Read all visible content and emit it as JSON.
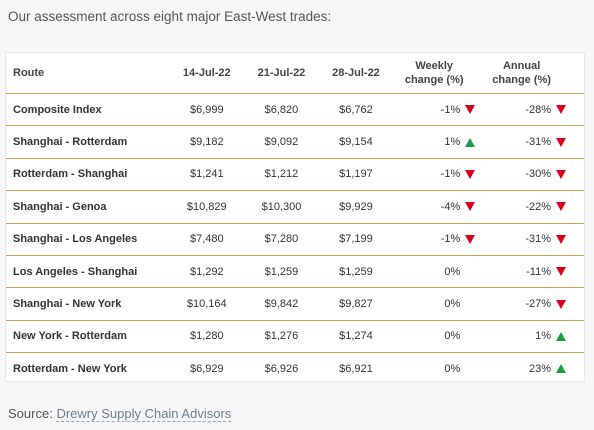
{
  "intro": "Our assessment across eight major East-West trades:",
  "columns": {
    "route": "Route",
    "d1": "14-Jul-22",
    "d2": "21-Jul-22",
    "d3": "28-Jul-22",
    "weekly_l1": "Weekly",
    "weekly_l2": "change (%)",
    "annual_l1": "Annual",
    "annual_l2": "change (%)"
  },
  "rows": [
    {
      "route": "Composite Index",
      "d1": "$6,999",
      "d2": "$6,820",
      "d3": "$6,762",
      "weekly": "-1%",
      "weekly_dir": "down",
      "annual": "-28%",
      "annual_dir": "down"
    },
    {
      "route": "Shanghai - Rotterdam",
      "d1": "$9,182",
      "d2": "$9,092",
      "d3": "$9,154",
      "weekly": "1%",
      "weekly_dir": "up",
      "annual": "-31%",
      "annual_dir": "down"
    },
    {
      "route": "Rotterdam - Shanghai",
      "d1": "$1,241",
      "d2": "$1,212",
      "d3": "$1,197",
      "weekly": "-1%",
      "weekly_dir": "down",
      "annual": "-30%",
      "annual_dir": "down"
    },
    {
      "route": "Shanghai - Genoa",
      "d1": "$10,829",
      "d2": "$10,300",
      "d3": "$9,929",
      "weekly": "-4%",
      "weekly_dir": "down",
      "annual": "-22%",
      "annual_dir": "down"
    },
    {
      "route": "Shanghai - Los Angeles",
      "d1": "$7,480",
      "d2": "$7,280",
      "d3": "$7,199",
      "weekly": "-1%",
      "weekly_dir": "down",
      "annual": "-31%",
      "annual_dir": "down"
    },
    {
      "route": "Los Angeles - Shanghai",
      "d1": "$1,292",
      "d2": "$1,259",
      "d3": "$1,259",
      "weekly": "0%",
      "weekly_dir": "none",
      "annual": "-11%",
      "annual_dir": "down"
    },
    {
      "route": "Shanghai - New York",
      "d1": "$10,164",
      "d2": "$9,842",
      "d3": "$9,827",
      "weekly": "0%",
      "weekly_dir": "none",
      "annual": "-27%",
      "annual_dir": "down"
    },
    {
      "route": "New York - Rotterdam",
      "d1": "$1,280",
      "d2": "$1,276",
      "d3": "$1,274",
      "weekly": "0%",
      "weekly_dir": "none",
      "annual": "1%",
      "annual_dir": "up"
    },
    {
      "route": "Rotterdam - New York",
      "d1": "$6,929",
      "d2": "$6,926",
      "d3": "$6,921",
      "weekly": "0%",
      "weekly_dir": "none",
      "annual": "23%",
      "annual_dir": "up"
    }
  ],
  "colors": {
    "down": "#d8001c",
    "up": "#1a9e46",
    "rule": "#c8a24a"
  },
  "icons": {
    "down": "down-triangle-icon",
    "up": "up-triangle-icon"
  },
  "source": {
    "label": "Source:",
    "link": "Drewry Supply Chain Advisors"
  }
}
